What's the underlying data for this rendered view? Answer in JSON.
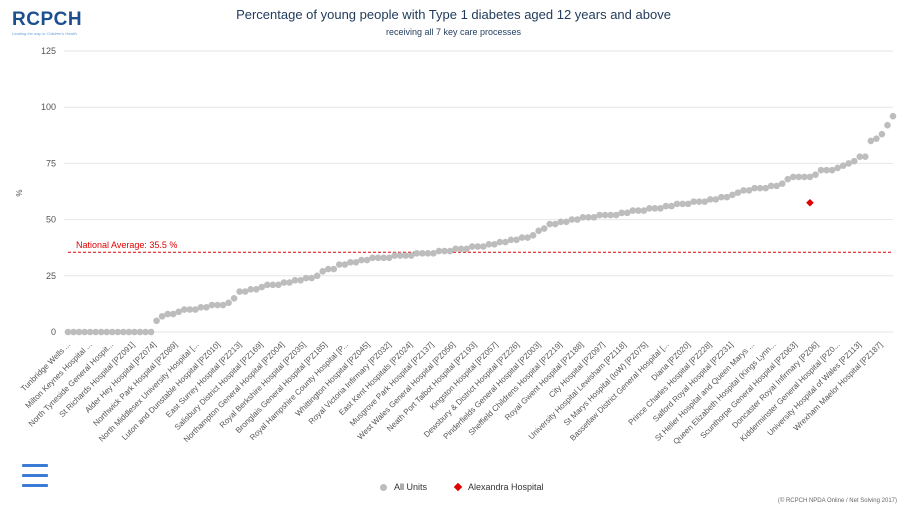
{
  "logo": {
    "text": "RCPCH",
    "tagline": "Leading the way in Children's Health"
  },
  "title": "Percentage of young people with Type 1 diabetes aged 12 years and above",
  "subtitle": "receiving all 7 key care processes",
  "legend": {
    "all_units": "All Units",
    "highlight": "Alexandra Hospital"
  },
  "credits": "(© RCPCH NPDA Online / Net Solving 2017)",
  "colors": {
    "points": "#bdbdbd",
    "highlight": "#e00000",
    "average_line": "#e00000",
    "grid": "#e6e6e6",
    "hamburger": "#3a7bd5"
  },
  "icons": {
    "menu": "hamburger-menu-icon",
    "all_units_marker": "grey-circle",
    "highlight_marker": "red-diamond"
  },
  "chart_data": {
    "type": "scatter",
    "title": "Percentage of young people with Type 1 diabetes aged 12 years and above",
    "subtitle": "receiving all 7 key care processes",
    "ylabel": "%",
    "ylim": [
      0,
      125
    ],
    "yticks": [
      0,
      25,
      50,
      75,
      100,
      125
    ],
    "grid": true,
    "legend_position": "bottom",
    "reference_line": {
      "label": "National Average: 35.5 %",
      "value": 35.5
    },
    "x_tick_labels": [
      "Tunbridge Wells ...",
      "Milton Keynes Hospital ...",
      "North Tyneside General Hospit...",
      "St Richards Hospital [PZ091]",
      "Alder Hey Hospital [PZ074]",
      "Northwick Park Hospital [PZ089]",
      "North Middlesex University Hospital [...",
      "Luton and Dunstable Hospital [PZ010]",
      "East Surrey Hospital [PZ213]",
      "Salisbury District Hospital [PZ169]",
      "Northampton General Hospital [PZ004]",
      "Royal Berkshire Hospital [PZ035]",
      "Bronglais General Hospital [PZ185]",
      "Royal Hampshire County Hospital [P...",
      "Whittington Hospital [PZ045]",
      "Royal Victoria Infirmary [PZ032]",
      "East Kent Hospitals [PZ024]",
      "Musgrove Park Hospital [PZ137]",
      "West Wales General Hospital [PZ056]",
      "Neath Port Talbot Hospital [PZ193]",
      "Kingston Hospital [PZ057]",
      "Dewsbury & District Hospital [PZ226]",
      "Pinderfields General Hospital [PZ003]",
      "Sheffield Childrens Hospital [PZ219]",
      "Royal Gwent Hospital [PZ188]",
      "City Hospital [PZ097]",
      "University Hospital Lewisham [PZ118]",
      "St Marys Hospital (IoW) [PZ075]",
      "Bassetlaw District General Hospital [...",
      "Diana [PZ020]",
      "Prince Charles Hospital [PZ228]",
      "Salford Royal Hospital [PZ231]",
      "St Helier Hospital and Queen Marys ...",
      "Queen Elizabeth Hospital (Kings Lynn...",
      "Scunthorpe General Hospital [PZ063]",
      "Doncaster Royal Infirmary [PZ06]",
      "Kidderminster General Hospital [PZ0...",
      "University Hospital of Wales [PZ113]",
      "Wrexham Maelor Hospital [PZ187]"
    ],
    "series": [
      {
        "name": "All Units",
        "values": [
          0,
          0,
          0,
          0,
          0,
          0,
          0,
          0,
          0,
          0,
          0,
          0,
          0,
          0,
          0,
          0,
          5,
          7,
          8,
          8,
          9,
          10,
          10,
          10,
          11,
          11,
          12,
          12,
          12,
          13,
          15,
          18,
          18,
          19,
          19,
          20,
          21,
          21,
          21,
          22,
          22,
          23,
          23,
          24,
          24,
          25,
          27,
          28,
          28,
          30,
          30,
          31,
          31,
          32,
          32,
          33,
          33,
          33,
          33,
          34,
          34,
          34,
          34,
          35,
          35,
          35,
          35,
          36,
          36,
          36,
          37,
          37,
          37,
          38,
          38,
          38,
          39,
          39,
          40,
          40,
          41,
          41,
          42,
          42,
          43,
          45,
          46,
          48,
          48,
          49,
          49,
          50,
          50,
          51,
          51,
          51,
          52,
          52,
          52,
          52,
          53,
          53,
          54,
          54,
          54,
          55,
          55,
          55,
          56,
          56,
          57,
          57,
          57,
          58,
          58,
          58,
          59,
          59,
          60,
          60,
          61,
          62,
          63,
          63,
          64,
          64,
          64,
          65,
          65,
          66,
          68,
          69,
          69,
          69,
          69,
          70,
          72,
          72,
          72,
          73,
          74,
          75,
          76,
          78,
          78,
          85,
          86,
          88,
          92,
          96
        ]
      },
      {
        "name": "Alexandra Hospital",
        "points": [
          {
            "x": 134,
            "y": 57.5
          }
        ]
      }
    ]
  }
}
